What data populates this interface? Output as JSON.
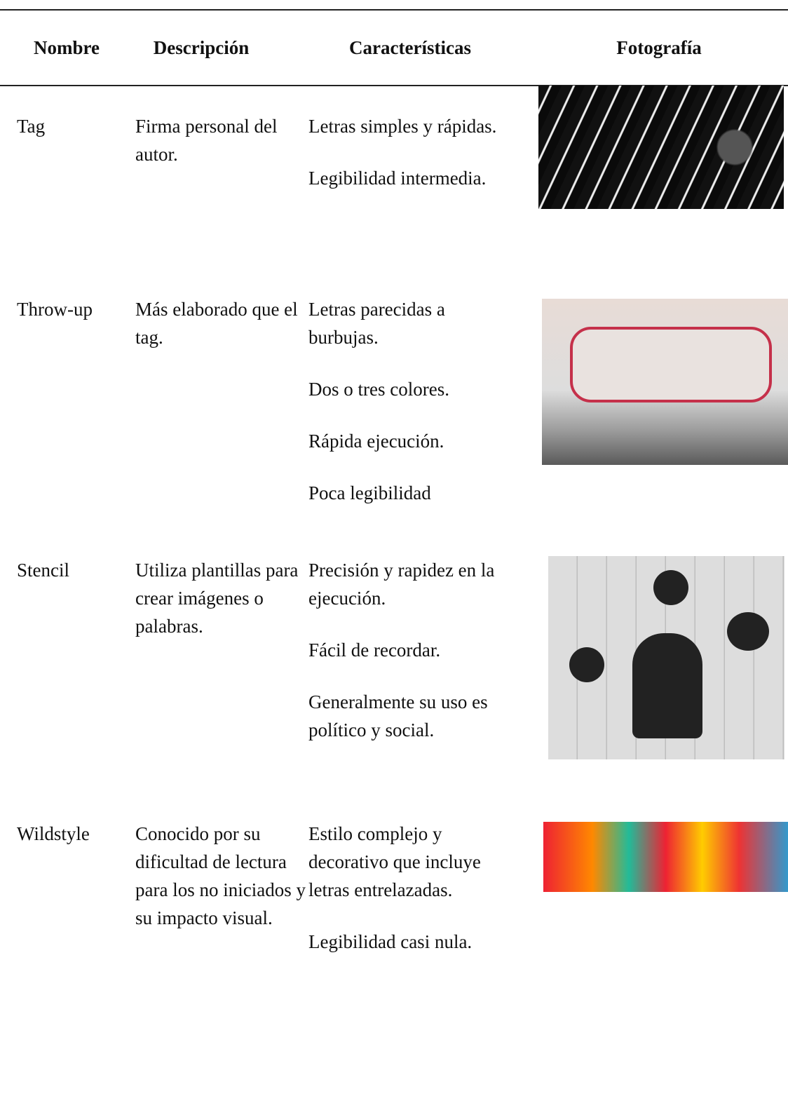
{
  "header": {
    "columns": [
      "Nombre",
      "Descripción",
      "Características",
      "Fotografía"
    ]
  },
  "rows": [
    {
      "name": "Tag",
      "description": "Firma personal del autor.",
      "characteristics": [
        "Letras simples y rápidas.",
        "Legibilidad intermedia."
      ]
    },
    {
      "name": "Throw-up",
      "description": "Más elaborado que el tag.",
      "characteristics": [
        "Letras parecidas a burbujas.",
        "Dos o tres colores.",
        "Rápida ejecución.",
        "Poca legibilidad"
      ]
    },
    {
      "name": "Stencil",
      "description": "Utiliza plantillas para crear imágenes o palabras.",
      "characteristics": [
        "Precisión y rapidez en la ejecución.",
        "Fácil de recordar.",
        "Generalmente su uso es político y social."
      ]
    },
    {
      "name": "Wildstyle",
      "description": "Conocido por su dificultad de lectura para los no iniciados y su impacto visual.",
      "characteristics": [
        "Estilo complejo y decorativo que incluye letras entrelazadas.",
        "Legibilidad casi nula."
      ]
    }
  ]
}
